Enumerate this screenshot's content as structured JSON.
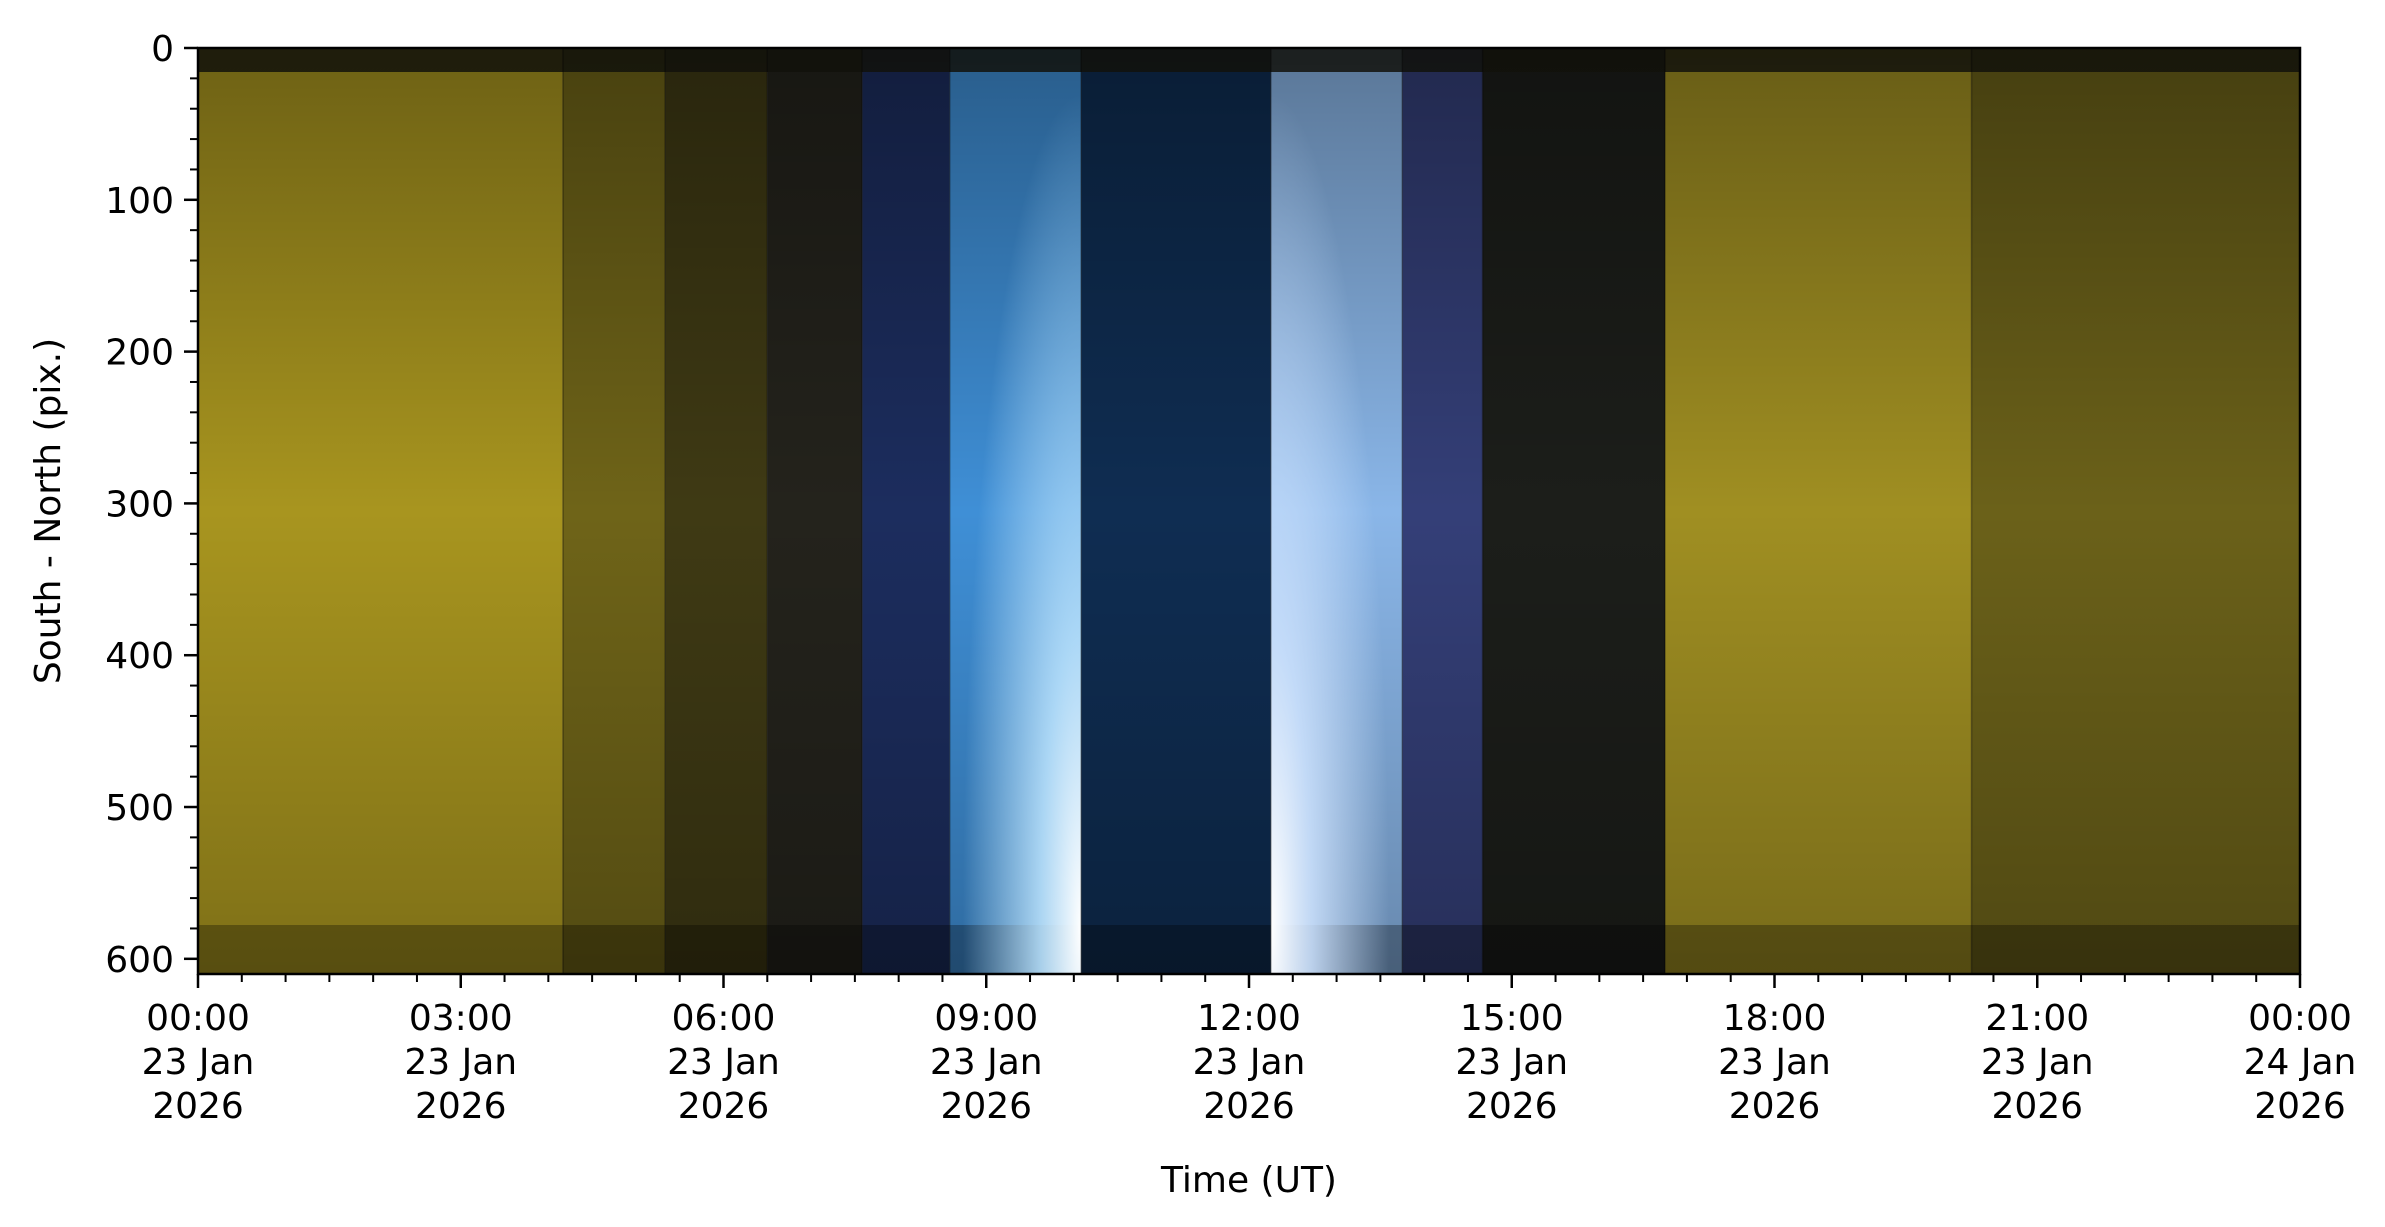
{
  "chart_data": {
    "type": "heatmap",
    "title": "",
    "xlabel": "Time (UT)",
    "ylabel": "South - North (pix.)",
    "xlim": [
      "2026-01-23T00:00",
      "2026-01-24T00:00"
    ],
    "ylim": [
      610,
      0
    ],
    "y_inverted": true,
    "grid": false,
    "y_ticks": [
      0,
      100,
      200,
      300,
      400,
      500,
      600
    ],
    "x_ticks": [
      {
        "value": "2026-01-23T00:00",
        "time": "00:00",
        "day": "23 Jan",
        "year": "2026"
      },
      {
        "value": "2026-01-23T03:00",
        "time": "03:00",
        "day": "23 Jan",
        "year": "2026"
      },
      {
        "value": "2026-01-23T06:00",
        "time": "06:00",
        "day": "23 Jan",
        "year": "2026"
      },
      {
        "value": "2026-01-23T09:00",
        "time": "09:00",
        "day": "23 Jan",
        "year": "2026"
      },
      {
        "value": "2026-01-23T12:00",
        "time": "12:00",
        "day": "23 Jan",
        "year": "2026"
      },
      {
        "value": "2026-01-23T15:00",
        "time": "15:00",
        "day": "23 Jan",
        "year": "2026"
      },
      {
        "value": "2026-01-23T18:00",
        "time": "18:00",
        "day": "23 Jan",
        "year": "2026"
      },
      {
        "value": "2026-01-23T21:00",
        "time": "21:00",
        "day": "23 Jan",
        "year": "2026"
      },
      {
        "value": "2026-01-24T00:00",
        "time": "00:00",
        "day": "24 Jan",
        "year": "2026"
      }
    ],
    "color_segments": [
      {
        "start": "00:00",
        "end": "04:10",
        "color": "#a8951f"
      },
      {
        "start": "04:10",
        "end": "05:20",
        "color": "#6f6418"
      },
      {
        "start": "05:20",
        "end": "06:30",
        "color": "#3f3a14"
      },
      {
        "start": "06:30",
        "end": "07:35",
        "color": "#24231c"
      },
      {
        "start": "07:35",
        "end": "08:35",
        "color": "#1c2d5e"
      },
      {
        "start": "08:35",
        "end": "10:05",
        "color": "#3f8fd6"
      },
      {
        "start": "10:05",
        "end": "12:15",
        "color": "#0f2d52"
      },
      {
        "start": "12:15",
        "end": "13:45",
        "color": "#8ab6e8"
      },
      {
        "start": "13:45",
        "end": "14:40",
        "color": "#343f78"
      },
      {
        "start": "14:40",
        "end": "16:45",
        "color": "#1c1e1a"
      },
      {
        "start": "16:45",
        "end": "20:15",
        "color": "#a08f22"
      },
      {
        "start": "20:15",
        "end": "24:00",
        "color": "#6b6119"
      }
    ]
  }
}
